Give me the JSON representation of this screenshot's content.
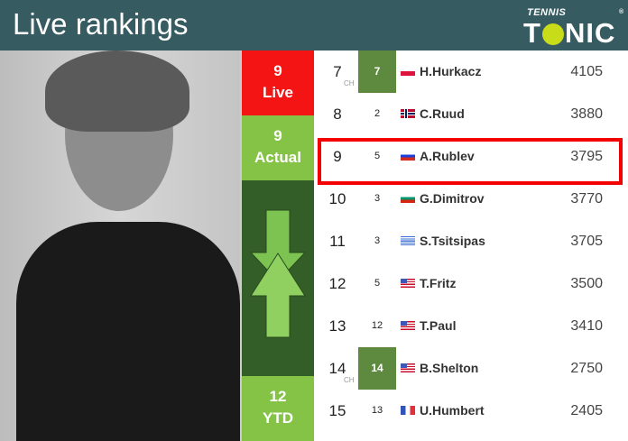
{
  "header": {
    "title": "Live rankings",
    "logo_top": "TENNIS",
    "logo_bottom_a": "T",
    "logo_bottom_b": "NIC",
    "logo_reg": "®"
  },
  "side": {
    "live_value": "9",
    "live_label": "Live",
    "actual_value": "9",
    "actual_label": "Actual",
    "ytd_value": "12",
    "ytd_label": "YTD"
  },
  "colors": {
    "header": "#365b60",
    "live": "#f41414",
    "actual": "#85c346",
    "arrows_bg": "#335e28",
    "highlight": "#f40000"
  },
  "rows": [
    {
      "rank": "7",
      "ch": "CH",
      "best": "7",
      "best_hl": true,
      "flag": "poland-flag",
      "name": "H.Hurkacz",
      "points": "4105"
    },
    {
      "rank": "8",
      "ch": "",
      "best": "2",
      "best_hl": false,
      "flag": "norway-flag",
      "name": "C.Ruud",
      "points": "3880"
    },
    {
      "rank": "9",
      "ch": "",
      "best": "5",
      "best_hl": false,
      "flag": "russia-flag",
      "name": "A.Rublev",
      "points": "3795"
    },
    {
      "rank": "10",
      "ch": "",
      "best": "3",
      "best_hl": false,
      "flag": "bulgaria-flag",
      "name": "G.Dimitrov",
      "points": "3770"
    },
    {
      "rank": "11",
      "ch": "",
      "best": "3",
      "best_hl": false,
      "flag": "greece-flag",
      "name": "S.Tsitsipas",
      "points": "3705"
    },
    {
      "rank": "12",
      "ch": "",
      "best": "5",
      "best_hl": false,
      "flag": "usa-flag",
      "name": "T.Fritz",
      "points": "3500"
    },
    {
      "rank": "13",
      "ch": "",
      "best": "12",
      "best_hl": false,
      "flag": "usa-flag",
      "name": "T.Paul",
      "points": "3410"
    },
    {
      "rank": "14",
      "ch": "CH",
      "best": "14",
      "best_hl": true,
      "flag": "usa-flag",
      "name": "B.Shelton",
      "points": "2750"
    },
    {
      "rank": "15",
      "ch": "",
      "best": "13",
      "best_hl": false,
      "flag": "france-flag",
      "name": "U.Humbert",
      "points": "2405"
    }
  ]
}
